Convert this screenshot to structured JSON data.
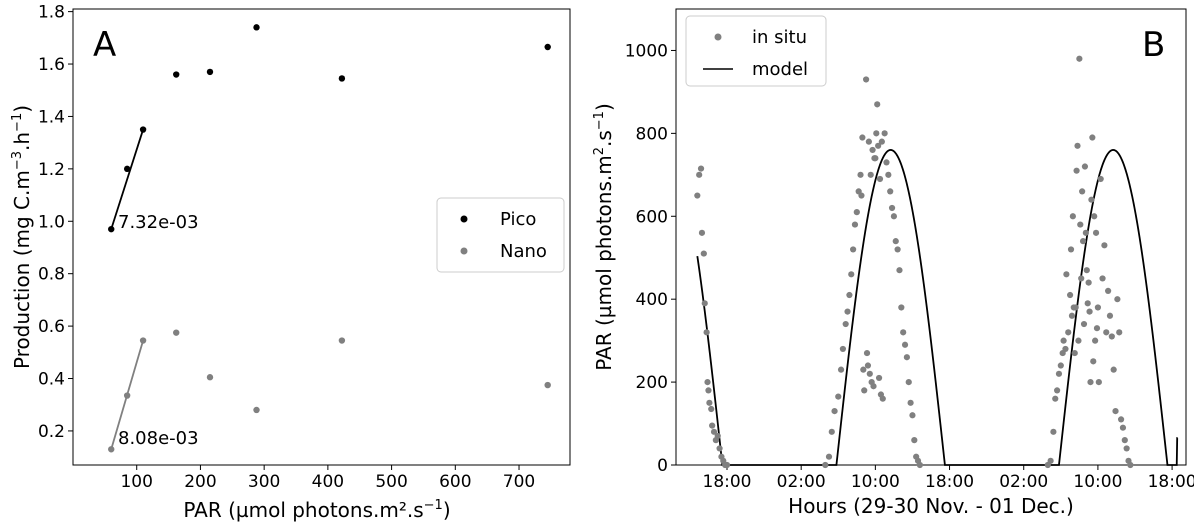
{
  "chart_data": [
    {
      "panel": "A",
      "type": "scatter",
      "xlabel": "PAR (µmol photons.m²",
      "xlabel_unit": "s",
      "xlabel_exp": "−1",
      "ylabel": "Production (mg C.m",
      "ylabel_exp1": "−3",
      "ylabel_mid": ".h",
      "ylabel_exp2": "−1",
      "xlim": [
        0,
        780
      ],
      "ylim": [
        0.07,
        1.81
      ],
      "xticks": [
        100,
        200,
        300,
        400,
        500,
        600,
        700
      ],
      "yticks": [
        0.2,
        0.4,
        0.6,
        0.8,
        1.0,
        1.2,
        1.4,
        1.6,
        1.8
      ],
      "legend_position": "center-right",
      "series": [
        {
          "name": "Pico",
          "color": "#000000",
          "x": [
            60,
            85,
            110,
            162,
            215,
            288,
            422,
            745
          ],
          "y": [
            0.97,
            1.2,
            1.35,
            1.56,
            1.57,
            1.74,
            1.545,
            1.665
          ],
          "fit_x": [
            60,
            110
          ],
          "fit_y": [
            0.97,
            1.35
          ],
          "slope_label": "7.32e-03"
        },
        {
          "name": "Nano",
          "color": "#808080",
          "x": [
            60,
            85,
            110,
            162,
            215,
            288,
            422,
            745
          ],
          "y": [
            0.13,
            0.335,
            0.545,
            0.575,
            0.405,
            0.28,
            0.545,
            0.375
          ],
          "fit_x": [
            60,
            110
          ],
          "fit_y": [
            0.13,
            0.545
          ],
          "slope_label": "8.08e-03"
        }
      ]
    },
    {
      "panel": "B",
      "type": "line",
      "xlabel": "Hours (29-30 Nov. - 01 Dec.)",
      "ylabel": "PAR (µmol photons.m",
      "ylabel_exp1": "2",
      "ylabel_mid": ".s",
      "ylabel_exp2": "−1",
      "x_unit": "hours since 00:00 on 29 Nov.",
      "xlim": [
        12.5,
        67.5
      ],
      "ylim": [
        0,
        1100
      ],
      "xticks": [
        18,
        26,
        34,
        42,
        50,
        58,
        66
      ],
      "xtick_labels": [
        "18:00",
        "02:00",
        "10:00",
        "18:00",
        "02:00",
        "10:00",
        "18:00"
      ],
      "yticks": [
        0,
        200,
        400,
        600,
        800,
        1000
      ],
      "legend_position": "top-left",
      "model": {
        "name": "model",
        "color": "#000000",
        "peak": 760,
        "daylight_intervals": [
          [
            5.8,
            17.5
          ],
          [
            29.8,
            41.5
          ],
          [
            53.8,
            65.5
          ]
        ],
        "x_start": 14.8,
        "x_end": 66.6,
        "y_end": 65
      },
      "in_situ": {
        "name": "in situ",
        "color": "#808080",
        "points": [
          [
            14.8,
            650
          ],
          [
            15,
            700
          ],
          [
            15.2,
            715
          ],
          [
            15.3,
            560
          ],
          [
            15.5,
            510
          ],
          [
            15.6,
            390
          ],
          [
            15.8,
            320
          ],
          [
            15.9,
            200
          ],
          [
            16,
            180
          ],
          [
            16.1,
            150
          ],
          [
            16.3,
            135
          ],
          [
            16.4,
            95
          ],
          [
            16.6,
            80
          ],
          [
            16.8,
            60
          ],
          [
            17,
            70
          ],
          [
            17.2,
            40
          ],
          [
            17.4,
            20
          ],
          [
            17.6,
            10
          ],
          [
            17.8,
            0
          ],
          [
            18,
            0
          ],
          [
            28.6,
            0
          ],
          [
            29,
            20
          ],
          [
            29.3,
            80
          ],
          [
            29.6,
            130
          ],
          [
            30,
            165
          ],
          [
            30.3,
            230
          ],
          [
            30.5,
            280
          ],
          [
            30.8,
            340
          ],
          [
            31,
            370
          ],
          [
            31.2,
            410
          ],
          [
            31.4,
            460
          ],
          [
            31.6,
            520
          ],
          [
            31.8,
            580
          ],
          [
            32,
            610
          ],
          [
            32.2,
            660
          ],
          [
            32.4,
            700
          ],
          [
            32.5,
            650
          ],
          [
            32.6,
            790
          ],
          [
            32.7,
            230
          ],
          [
            32.8,
            180
          ],
          [
            33,
            930
          ],
          [
            33.1,
            270
          ],
          [
            33.2,
            240
          ],
          [
            33.3,
            780
          ],
          [
            33.4,
            220
          ],
          [
            33.5,
            700
          ],
          [
            33.6,
            200
          ],
          [
            33.7,
            760
          ],
          [
            33.8,
            190
          ],
          [
            33.9,
            740
          ],
          [
            34,
            740
          ],
          [
            34.1,
            800
          ],
          [
            34.2,
            870
          ],
          [
            34.3,
            770
          ],
          [
            34.4,
            210
          ],
          [
            34.5,
            690
          ],
          [
            34.6,
            170
          ],
          [
            34.7,
            780
          ],
          [
            34.8,
            160
          ],
          [
            35,
            800
          ],
          [
            35.2,
            730
          ],
          [
            35.4,
            700
          ],
          [
            35.6,
            660
          ],
          [
            35.8,
            620
          ],
          [
            36,
            600
          ],
          [
            36.2,
            540
          ],
          [
            36.4,
            520
          ],
          [
            36.6,
            470
          ],
          [
            36.8,
            380
          ],
          [
            37,
            320
          ],
          [
            37.2,
            290
          ],
          [
            37.4,
            260
          ],
          [
            37.6,
            200
          ],
          [
            37.8,
            150
          ],
          [
            38,
            120
          ],
          [
            38.2,
            60
          ],
          [
            38.4,
            20
          ],
          [
            38.6,
            10
          ],
          [
            38.8,
            0
          ],
          [
            52.6,
            0
          ],
          [
            52.9,
            10
          ],
          [
            53.2,
            80
          ],
          [
            53.4,
            160
          ],
          [
            53.6,
            180
          ],
          [
            53.8,
            220
          ],
          [
            54,
            240
          ],
          [
            54.2,
            270
          ],
          [
            54.3,
            300
          ],
          [
            54.5,
            280
          ],
          [
            54.6,
            460
          ],
          [
            54.8,
            320
          ],
          [
            55,
            410
          ],
          [
            55.1,
            520
          ],
          [
            55.2,
            360
          ],
          [
            55.3,
            600
          ],
          [
            55.4,
            380
          ],
          [
            55.5,
            270
          ],
          [
            55.6,
            380
          ],
          [
            55.7,
            710
          ],
          [
            55.8,
            770
          ],
          [
            55.9,
            300
          ],
          [
            56,
            980
          ],
          [
            56.1,
            580
          ],
          [
            56.2,
            450
          ],
          [
            56.3,
            660
          ],
          [
            56.4,
            540
          ],
          [
            56.5,
            340
          ],
          [
            56.6,
            720
          ],
          [
            56.7,
            560
          ],
          [
            56.8,
            470
          ],
          [
            56.9,
            390
          ],
          [
            57,
            440
          ],
          [
            57.1,
            370
          ],
          [
            57.2,
            200
          ],
          [
            57.3,
            640
          ],
          [
            57.4,
            790
          ],
          [
            57.5,
            250
          ],
          [
            57.6,
            600
          ],
          [
            57.7,
            300
          ],
          [
            57.8,
            560
          ],
          [
            57.9,
            330
          ],
          [
            58,
            380
          ],
          [
            58.1,
            200
          ],
          [
            58.3,
            690
          ],
          [
            58.5,
            450
          ],
          [
            58.7,
            530
          ],
          [
            58.9,
            320
          ],
          [
            59.1,
            420
          ],
          [
            59.3,
            360
          ],
          [
            59.5,
            310
          ],
          [
            59.7,
            230
          ],
          [
            59.9,
            130
          ],
          [
            60.1,
            400
          ],
          [
            60.3,
            320
          ],
          [
            60.5,
            110
          ],
          [
            60.7,
            90
          ],
          [
            60.9,
            60
          ],
          [
            61.1,
            40
          ],
          [
            61.3,
            10
          ],
          [
            61.5,
            0
          ]
        ]
      }
    }
  ]
}
